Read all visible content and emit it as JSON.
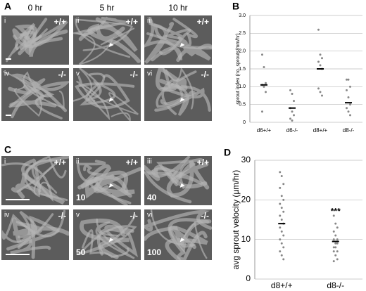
{
  "figure": {
    "panel_labels": [
      "A",
      "B",
      "C",
      "D"
    ],
    "column_headers": [
      "0 hr",
      "5 hr",
      "10 hr"
    ],
    "images_A": [
      {
        "numeral": "i",
        "genotype": "+/+"
      },
      {
        "numeral": "ii",
        "genotype": "+/+"
      },
      {
        "numeral": "iii",
        "genotype": "+/+"
      },
      {
        "numeral": "iv",
        "genotype": "-/-"
      },
      {
        "numeral": "v",
        "genotype": "-/-"
      },
      {
        "numeral": "vi",
        "genotype": "-/-"
      }
    ],
    "images_C": [
      {
        "numeral": "i",
        "genotype": "+/+"
      },
      {
        "numeral": "ii",
        "genotype": "+/+",
        "time": "10"
      },
      {
        "numeral": "iii",
        "genotype": "+/+",
        "time": "40"
      },
      {
        "numeral": "iv",
        "genotype": "-/-"
      },
      {
        "numeral": "v",
        "genotype": "-/-",
        "time": "50"
      },
      {
        "numeral": "vi",
        "genotype": "-/-",
        "time": "100"
      }
    ]
  },
  "chart_data": [
    {
      "type": "dot",
      "ylabel": "sprout index (no. sprouts/mm/hr)",
      "categories": [
        "d6+/+",
        "d6-/-",
        "d8+/+",
        "d8-/-"
      ],
      "points": [
        [
          1.9,
          1.55,
          1.1,
          1.05,
          1.0,
          0.85,
          0.3
        ],
        [
          0.9,
          0.8,
          0.6,
          0.4,
          0.3,
          0.2,
          0.1,
          0.05
        ],
        [
          2.6,
          1.9,
          1.8,
          1.7,
          1.6,
          1.5,
          0.95,
          0.85,
          0.75
        ],
        [
          1.2,
          1.2,
          1.0,
          0.9,
          0.7,
          0.5,
          0.4,
          0.3,
          0.2
        ]
      ],
      "means": [
        1.05,
        0.4,
        1.5,
        0.55
      ],
      "point_color": "#888888",
      "mean_color": "#000000",
      "ylim": [
        0,
        3.0
      ],
      "yticks": [
        0,
        0.5,
        {
          "value": 1,
          "label": "1.0"
        },
        1.5,
        {
          "value": 2,
          "label": "2.0"
        },
        2.5,
        {
          "value": 3,
          "label": "3.0"
        }
      ],
      "grid": true
    },
    {
      "type": "dot",
      "ylabel": "avg sprout velocity (µm/hr)",
      "categories": [
        "d8+/+",
        "d8-/-"
      ],
      "points": [
        [
          27,
          26,
          24,
          23,
          21,
          20,
          19,
          18,
          17,
          16,
          15,
          14,
          13,
          12,
          11,
          10,
          9,
          8,
          7,
          6,
          5
        ],
        [
          16,
          14,
          13,
          12,
          11,
          10,
          10,
          9,
          9,
          8,
          8,
          7,
          7,
          6,
          5,
          4.5
        ]
      ],
      "means": [
        14,
        9.5
      ],
      "point_color": "#888888",
      "mean_color": "#000000",
      "annotations": [
        {
          "text": "***",
          "x": "d8-/-",
          "y": 17
        }
      ],
      "ylim": [
        0,
        30
      ],
      "yticks": [
        0,
        10,
        20,
        30
      ],
      "grid": true
    }
  ]
}
